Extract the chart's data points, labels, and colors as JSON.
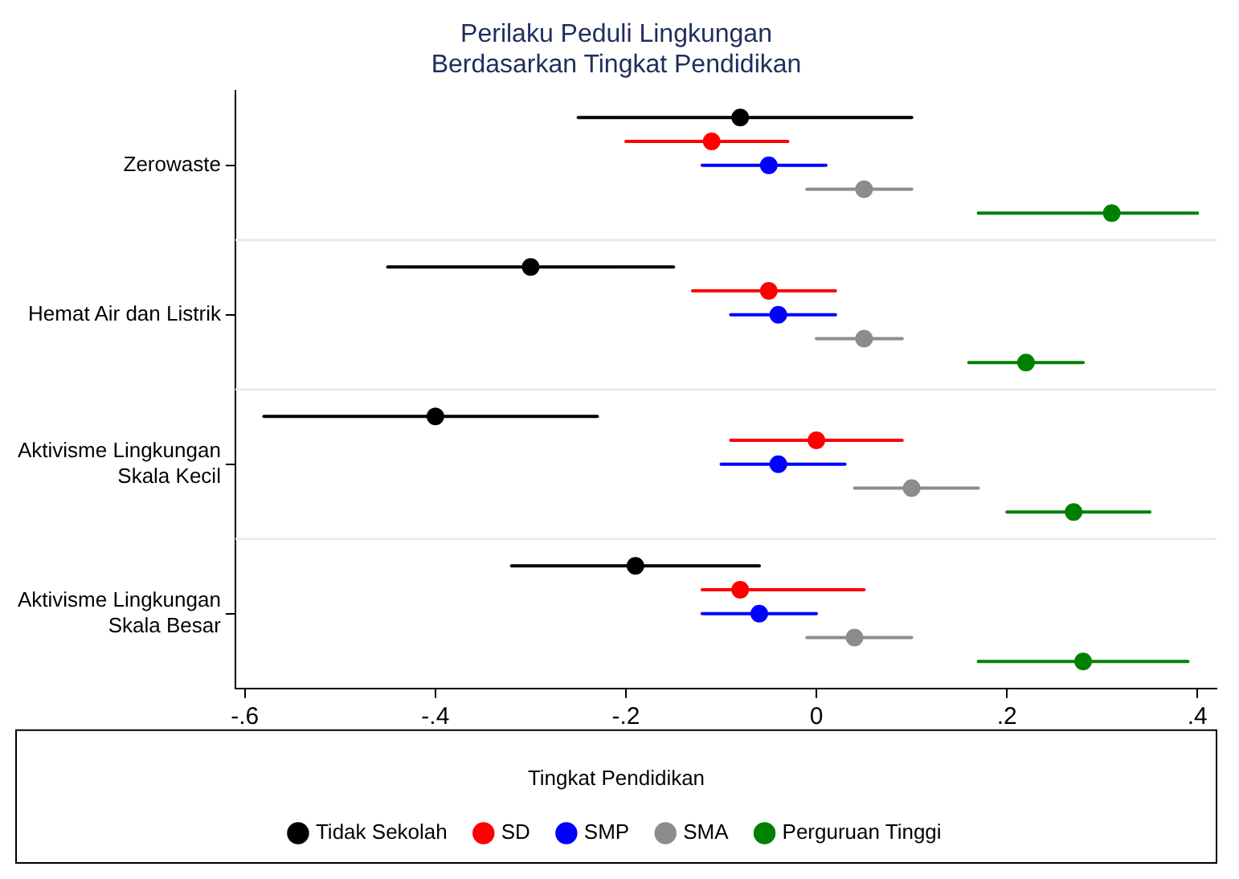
{
  "chart_data": {
    "type": "scatter",
    "orientation": "horizontal",
    "title": "Perilaku Peduli Lingkungan Berdasarkan Tingkat Pendidikan",
    "legend_title": "Tingkat Pendidikan",
    "legend": "bottom",
    "grid": "y",
    "marker": "circle",
    "categories": [
      "Zerowaste",
      "Hemat Air dan Listrik",
      "Aktivisme Lingkungan Skala Kecil",
      "Aktivisme Lingkungan Skala Besar"
    ],
    "xlim": [
      -0.61,
      0.42
    ],
    "xticks": [
      {
        "value": -0.6,
        "label": "-.6"
      },
      {
        "value": -0.4,
        "label": "-.4"
      },
      {
        "value": -0.2,
        "label": "-.2"
      },
      0,
      {
        "value": 0.2,
        "label": ".2"
      },
      {
        "value": 0.4,
        "label": ".4"
      }
    ],
    "series": [
      {
        "name": "Tidak Sekolah",
        "color": "#000000",
        "values": [
          -0.08,
          -0.3,
          -0.4,
          -0.19
        ],
        "errors": [
          [
            -0.25,
            0.1
          ],
          [
            -0.45,
            -0.15
          ],
          [
            -0.58,
            -0.23
          ],
          [
            -0.32,
            -0.06
          ]
        ]
      },
      {
        "name": "SD",
        "color": "#ff0000",
        "values": [
          -0.11,
          -0.05,
          0.0,
          -0.08
        ],
        "errors": [
          [
            -0.2,
            -0.03
          ],
          [
            -0.13,
            0.02
          ],
          [
            -0.09,
            0.09
          ],
          [
            -0.12,
            0.05
          ]
        ]
      },
      {
        "name": "SMP",
        "color": "#0000ff",
        "values": [
          -0.05,
          -0.04,
          -0.04,
          -0.06
        ],
        "errors": [
          [
            -0.12,
            0.01
          ],
          [
            -0.09,
            0.02
          ],
          [
            -0.1,
            0.03
          ],
          [
            -0.12,
            0.0
          ]
        ]
      },
      {
        "name": "SMA",
        "color": "#8c8c8c",
        "values": [
          0.05,
          0.05,
          0.1,
          0.04
        ],
        "errors": [
          [
            -0.01,
            0.1
          ],
          [
            0.0,
            0.09
          ],
          [
            0.04,
            0.17
          ],
          [
            -0.01,
            0.1
          ]
        ]
      },
      {
        "name": "Perguruan Tinggi",
        "color": "#008000",
        "values": [
          0.31,
          0.22,
          0.27,
          0.28
        ],
        "errors": [
          [
            0.17,
            0.4
          ],
          [
            0.16,
            0.28
          ],
          [
            0.2,
            0.35
          ],
          [
            0.17,
            0.39
          ]
        ]
      }
    ]
  }
}
